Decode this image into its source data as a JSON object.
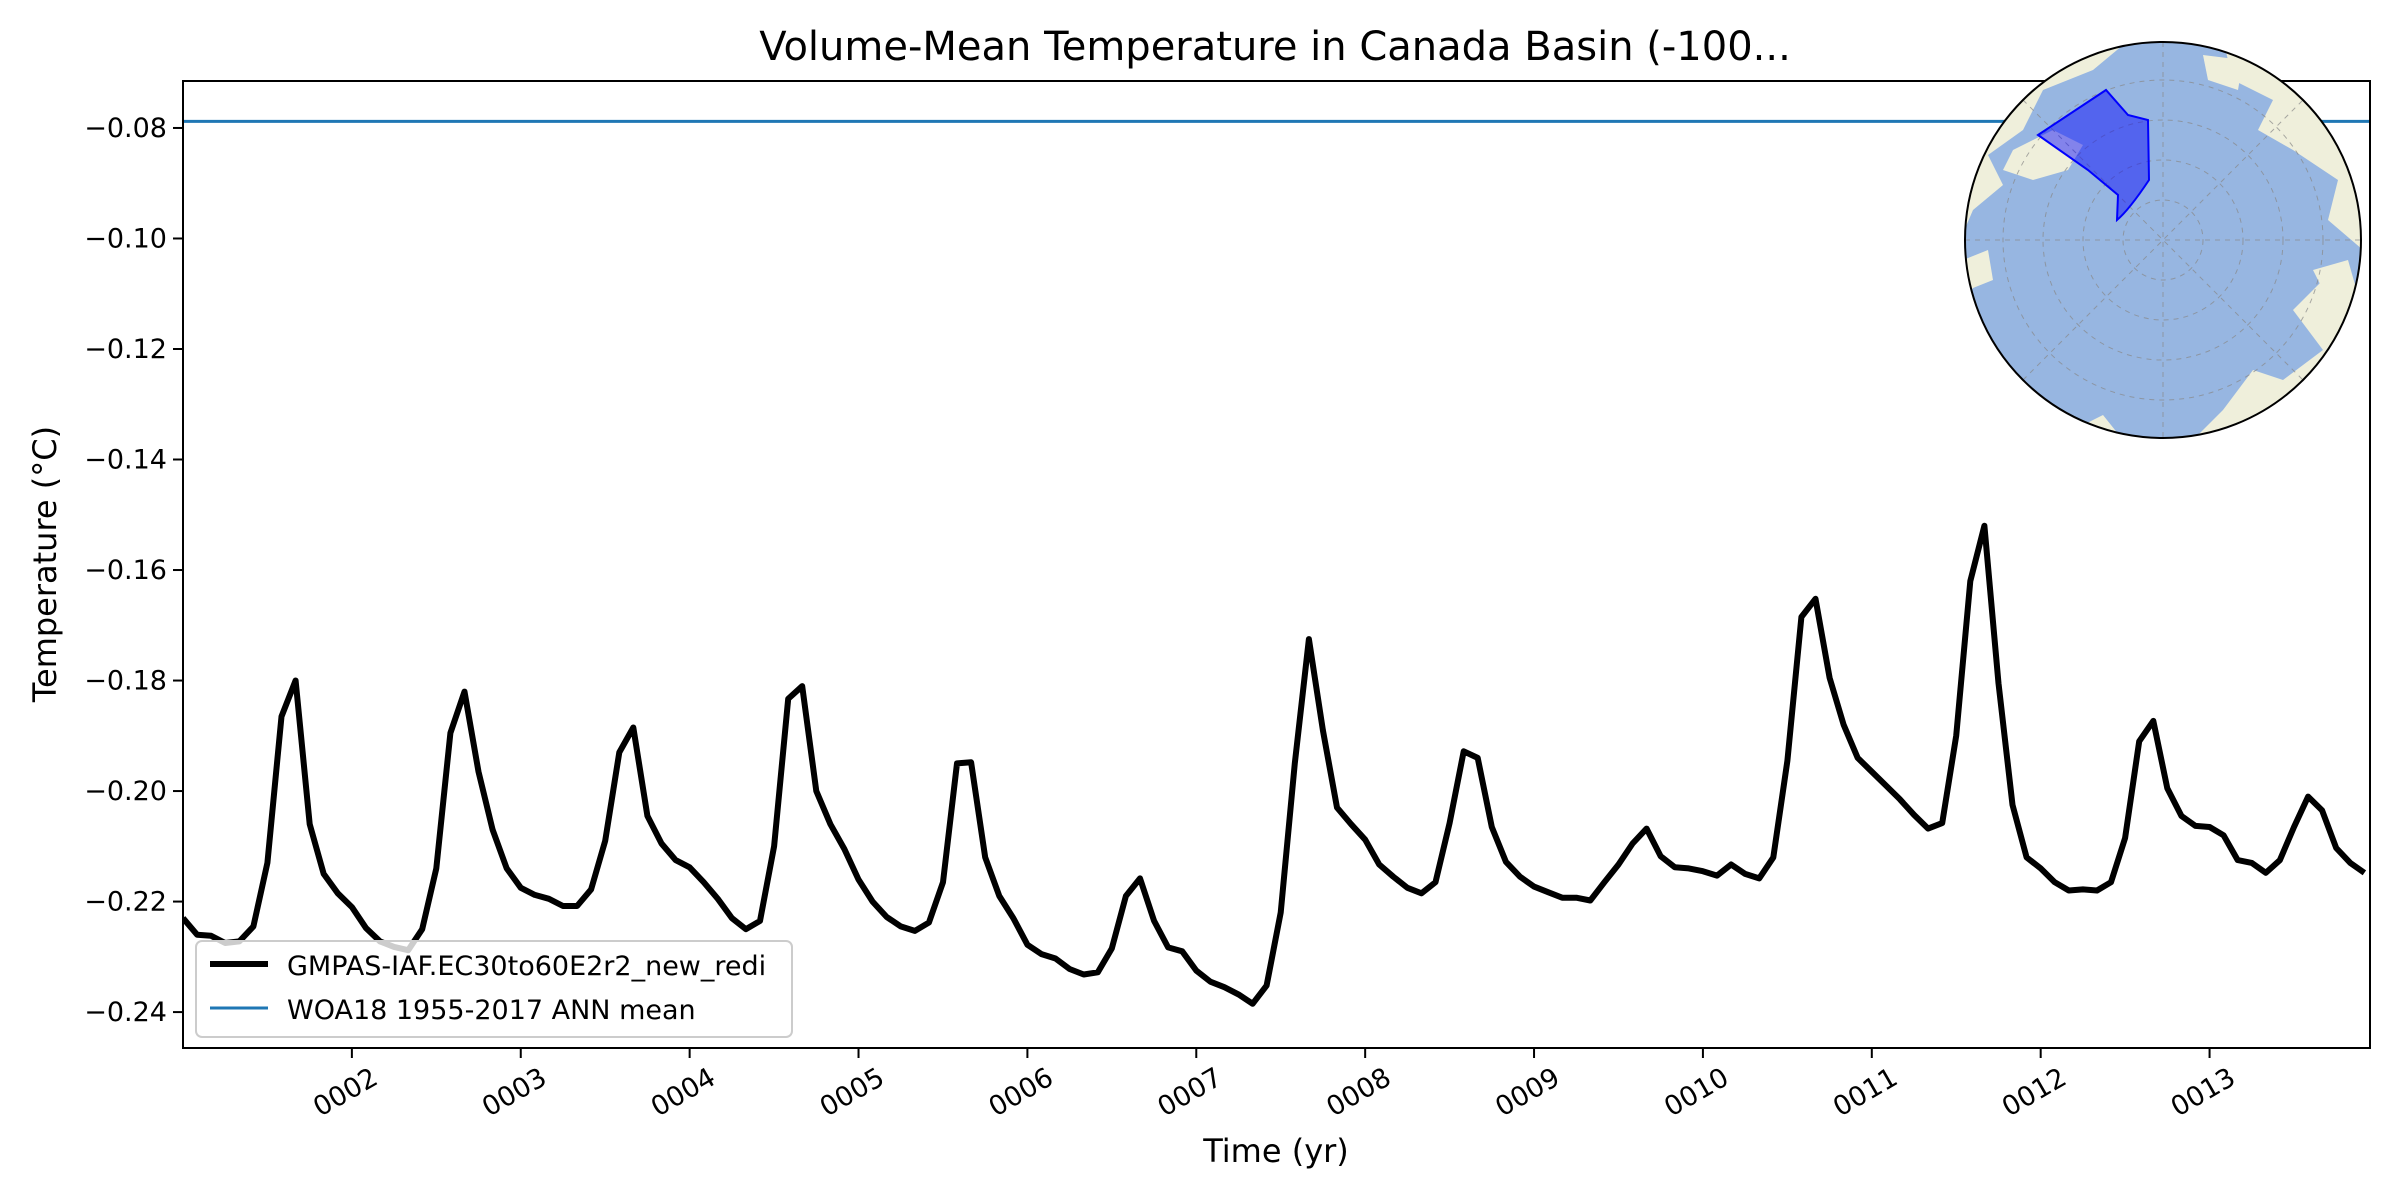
{
  "chart_data": {
    "type": "line",
    "title": "Volume-Mean Temperature in Canada Basin (-100...",
    "xlabel": "Time (yr)",
    "ylabel": "Temperature (°C)",
    "xlim": [
      1.0,
      13.95
    ],
    "ylim": [
      -0.2465,
      -0.0715
    ],
    "x_ticks": [
      2,
      3,
      4,
      5,
      6,
      7,
      8,
      9,
      10,
      11,
      12,
      13
    ],
    "x_tick_labels": [
      "0002",
      "0003",
      "0004",
      "0005",
      "0006",
      "0007",
      "0008",
      "0009",
      "0010",
      "0011",
      "0012",
      "0013"
    ],
    "y_ticks": [
      -0.24,
      -0.22,
      -0.2,
      -0.18,
      -0.16,
      -0.14,
      -0.12,
      -0.1,
      -0.08
    ],
    "y_tick_labels": [
      "−0.24",
      "−0.22",
      "−0.20",
      "−0.18",
      "−0.16",
      "−0.14",
      "−0.12",
      "−0.10",
      "−0.08"
    ],
    "legend_position": "lower-left",
    "grid": false,
    "series": [
      {
        "name": "GMPAS-IAF.EC30to60E2r2_new_redi",
        "color": "#000000",
        "x_start": 1.0,
        "x_step": 0.083333,
        "values": [
          -0.223,
          -0.226,
          -0.2262,
          -0.2275,
          -0.2272,
          -0.2245,
          -0.213,
          -0.1865,
          -0.18,
          -0.206,
          -0.215,
          -0.2185,
          -0.221,
          -0.2248,
          -0.2272,
          -0.2282,
          -0.2288,
          -0.225,
          -0.214,
          -0.1895,
          -0.182,
          -0.1965,
          -0.207,
          -0.214,
          -0.2175,
          -0.2188,
          -0.2195,
          -0.2208,
          -0.2208,
          -0.2178,
          -0.209,
          -0.193,
          -0.1885,
          -0.2045,
          -0.2095,
          -0.2125,
          -0.2138,
          -0.2165,
          -0.2195,
          -0.223,
          -0.225,
          -0.2235,
          -0.21,
          -0.1833,
          -0.181,
          -0.2,
          -0.206,
          -0.2105,
          -0.216,
          -0.22,
          -0.2228,
          -0.2245,
          -0.2253,
          -0.2238,
          -0.2165,
          -0.195,
          -0.1948,
          -0.212,
          -0.219,
          -0.223,
          -0.2278,
          -0.2295,
          -0.2303,
          -0.2322,
          -0.2332,
          -0.2328,
          -0.2285,
          -0.219,
          -0.2158,
          -0.2235,
          -0.2283,
          -0.229,
          -0.2325,
          -0.2345,
          -0.2355,
          -0.2368,
          -0.2385,
          -0.2352,
          -0.222,
          -0.195,
          -0.1725,
          -0.189,
          -0.203,
          -0.206,
          -0.2088,
          -0.2133,
          -0.2155,
          -0.2175,
          -0.2185,
          -0.2165,
          -0.2058,
          -0.1928,
          -0.194,
          -0.2065,
          -0.2128,
          -0.2155,
          -0.2173,
          -0.2183,
          -0.2193,
          -0.2193,
          -0.2198,
          -0.2165,
          -0.2133,
          -0.2095,
          -0.2068,
          -0.2118,
          -0.2138,
          -0.214,
          -0.2145,
          -0.2153,
          -0.2133,
          -0.215,
          -0.2158,
          -0.212,
          -0.1945,
          -0.1685,
          -0.1652,
          -0.1795,
          -0.188,
          -0.194,
          -0.1965,
          -0.199,
          -0.2015,
          -0.2043,
          -0.2068,
          -0.2058,
          -0.19,
          -0.162,
          -0.152,
          -0.1805,
          -0.2025,
          -0.212,
          -0.214,
          -0.2165,
          -0.218,
          -0.2178,
          -0.218,
          -0.2165,
          -0.2085,
          -0.191,
          -0.1873,
          -0.1995,
          -0.2045,
          -0.2063,
          -0.2065,
          -0.208,
          -0.2125,
          -0.213,
          -0.2148,
          -0.2125,
          -0.2065,
          -0.201,
          -0.2035,
          -0.2103,
          -0.213,
          -0.2148
        ]
      },
      {
        "name": "WOA18 1955-2017 ANN mean",
        "color": "#1f77b4",
        "constant": -0.0788
      }
    ]
  }
}
